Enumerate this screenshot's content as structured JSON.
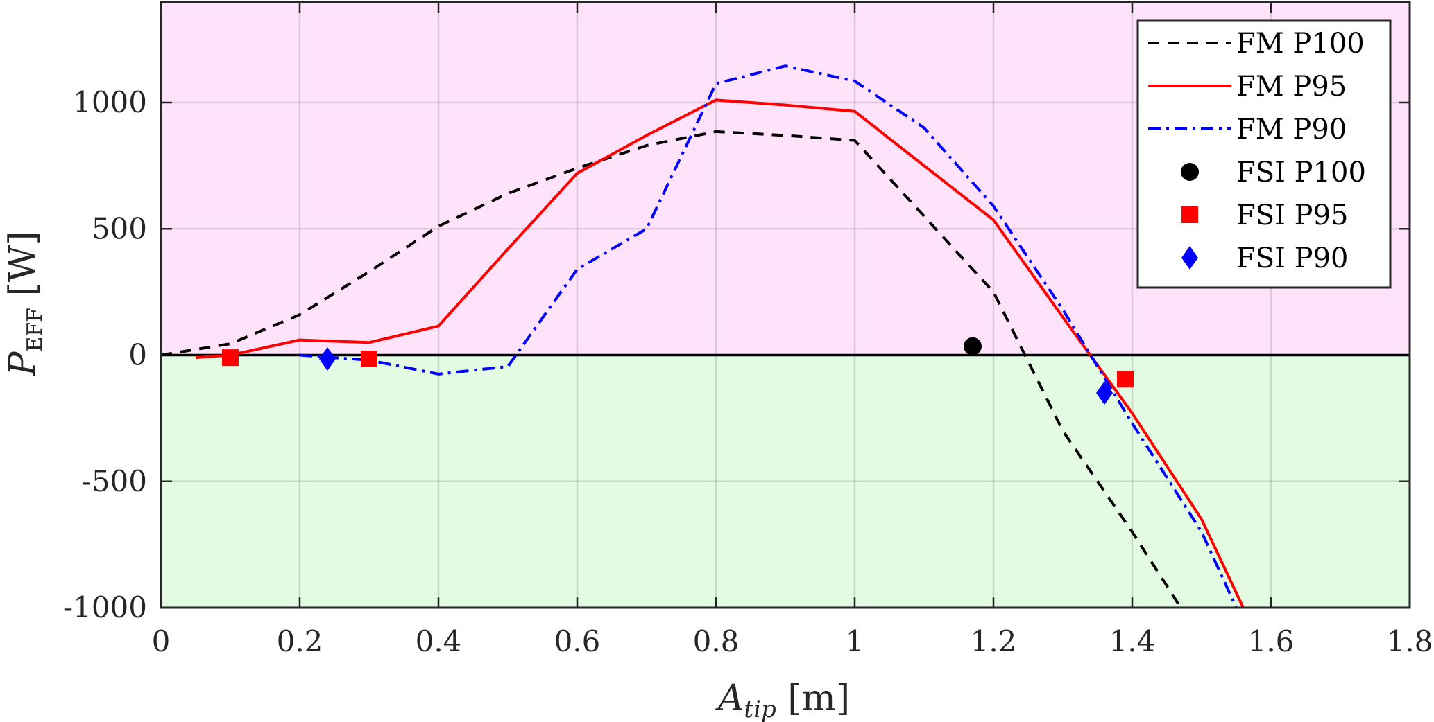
{
  "chart_data": {
    "type": "line",
    "xlabel_main": "A",
    "xlabel_sub": "tip",
    "xlabel_unit": " [m]",
    "ylabel_main": "P",
    "ylabel_sub": "EFF",
    "ylabel_unit": " [W]",
    "xlim": [
      0,
      1.8
    ],
    "ylim": [
      -1000,
      1000
    ],
    "xticks": [
      0,
      0.2,
      0.4,
      0.6,
      0.8,
      1,
      1.2,
      1.4,
      1.6,
      1.8
    ],
    "xtick_labels": [
      "0",
      "0.2",
      "0.4",
      "0.6",
      "0.8",
      "1",
      "1.2",
      "1.4",
      "1.6",
      "1.8"
    ],
    "yticks": [
      -1000,
      -500,
      0,
      500,
      1000
    ],
    "ytick_labels": [
      "-1000",
      "-500",
      "0",
      "500",
      "1000"
    ],
    "grid": true,
    "legend_position": "top-right",
    "colors": {
      "positive_region": "#ffe3fb",
      "negative_region": "#e2fbe2",
      "p100": "#000000",
      "p95": "#ff0000",
      "p90": "#0000ff"
    },
    "series": [
      {
        "name": "FM P100",
        "style": "dashed",
        "color": "#000000",
        "x": [
          0,
          0.1,
          0.2,
          0.3,
          0.4,
          0.5,
          0.6,
          0.7,
          0.8,
          0.9,
          1.0,
          1.1,
          1.2,
          1.3,
          1.4,
          1.47
        ],
        "y": [
          0,
          45,
          160,
          330,
          510,
          640,
          740,
          830,
          885,
          870,
          850,
          550,
          250,
          -300,
          -700,
          -1000
        ]
      },
      {
        "name": "FM P95",
        "style": "solid",
        "color": "#ff0000",
        "x": [
          0.05,
          0.1,
          0.2,
          0.3,
          0.4,
          0.5,
          0.6,
          0.7,
          0.8,
          0.9,
          1.0,
          1.1,
          1.2,
          1.3,
          1.4,
          1.5,
          1.56
        ],
        "y": [
          -10,
          0,
          60,
          50,
          115,
          420,
          720,
          870,
          1010,
          990,
          965,
          750,
          535,
          150,
          -230,
          -650,
          -1000
        ]
      },
      {
        "name": "FM P90",
        "style": "dashdot",
        "color": "#0000ff",
        "x": [
          0.2,
          0.3,
          0.4,
          0.5,
          0.6,
          0.7,
          0.8,
          0.9,
          1.0,
          1.1,
          1.2,
          1.3,
          1.4,
          1.5,
          1.55
        ],
        "y": [
          0,
          -20,
          -75,
          -45,
          340,
          500,
          1075,
          1145,
          1085,
          900,
          590,
          180,
          -270,
          -700,
          -1000
        ]
      }
    ],
    "markers": [
      {
        "name": "FSI P100",
        "shape": "circle",
        "color": "#000000",
        "points": [
          [
            1.17,
            35
          ]
        ]
      },
      {
        "name": "FSI P95",
        "shape": "square",
        "color": "#ff0000",
        "points": [
          [
            0.1,
            -10
          ],
          [
            0.3,
            -15
          ],
          [
            1.39,
            -95
          ]
        ]
      },
      {
        "name": "FSI P90",
        "shape": "diamond",
        "color": "#0000ff",
        "points": [
          [
            0.24,
            -15
          ],
          [
            1.36,
            -150
          ]
        ]
      }
    ]
  }
}
